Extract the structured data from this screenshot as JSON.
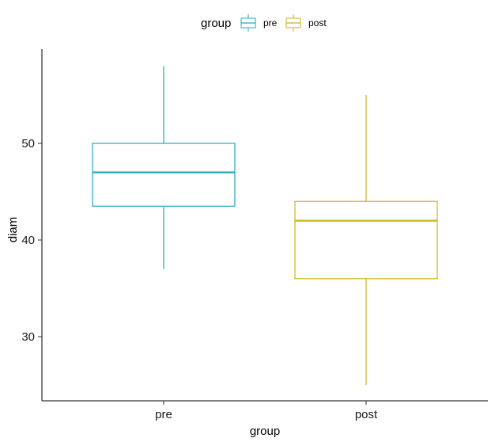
{
  "chart_data": {
    "type": "box",
    "xlabel": "group",
    "ylabel": "diam",
    "ylim": [
      24,
      59
    ],
    "yticks": [
      30,
      40,
      50
    ],
    "legend": {
      "title": "group",
      "placement": "top",
      "entries": [
        "pre",
        "post"
      ]
    },
    "categories": [
      "pre",
      "post"
    ],
    "series": [
      {
        "name": "pre",
        "color": "#1fa9bd",
        "min": 37,
        "q1": 43.5,
        "median": 47,
        "q3": 50,
        "max": 58
      },
      {
        "name": "post",
        "color": "#c9b31d",
        "min": 25,
        "q1": 36,
        "median": 42,
        "q3": 44,
        "max": 55
      }
    ]
  }
}
